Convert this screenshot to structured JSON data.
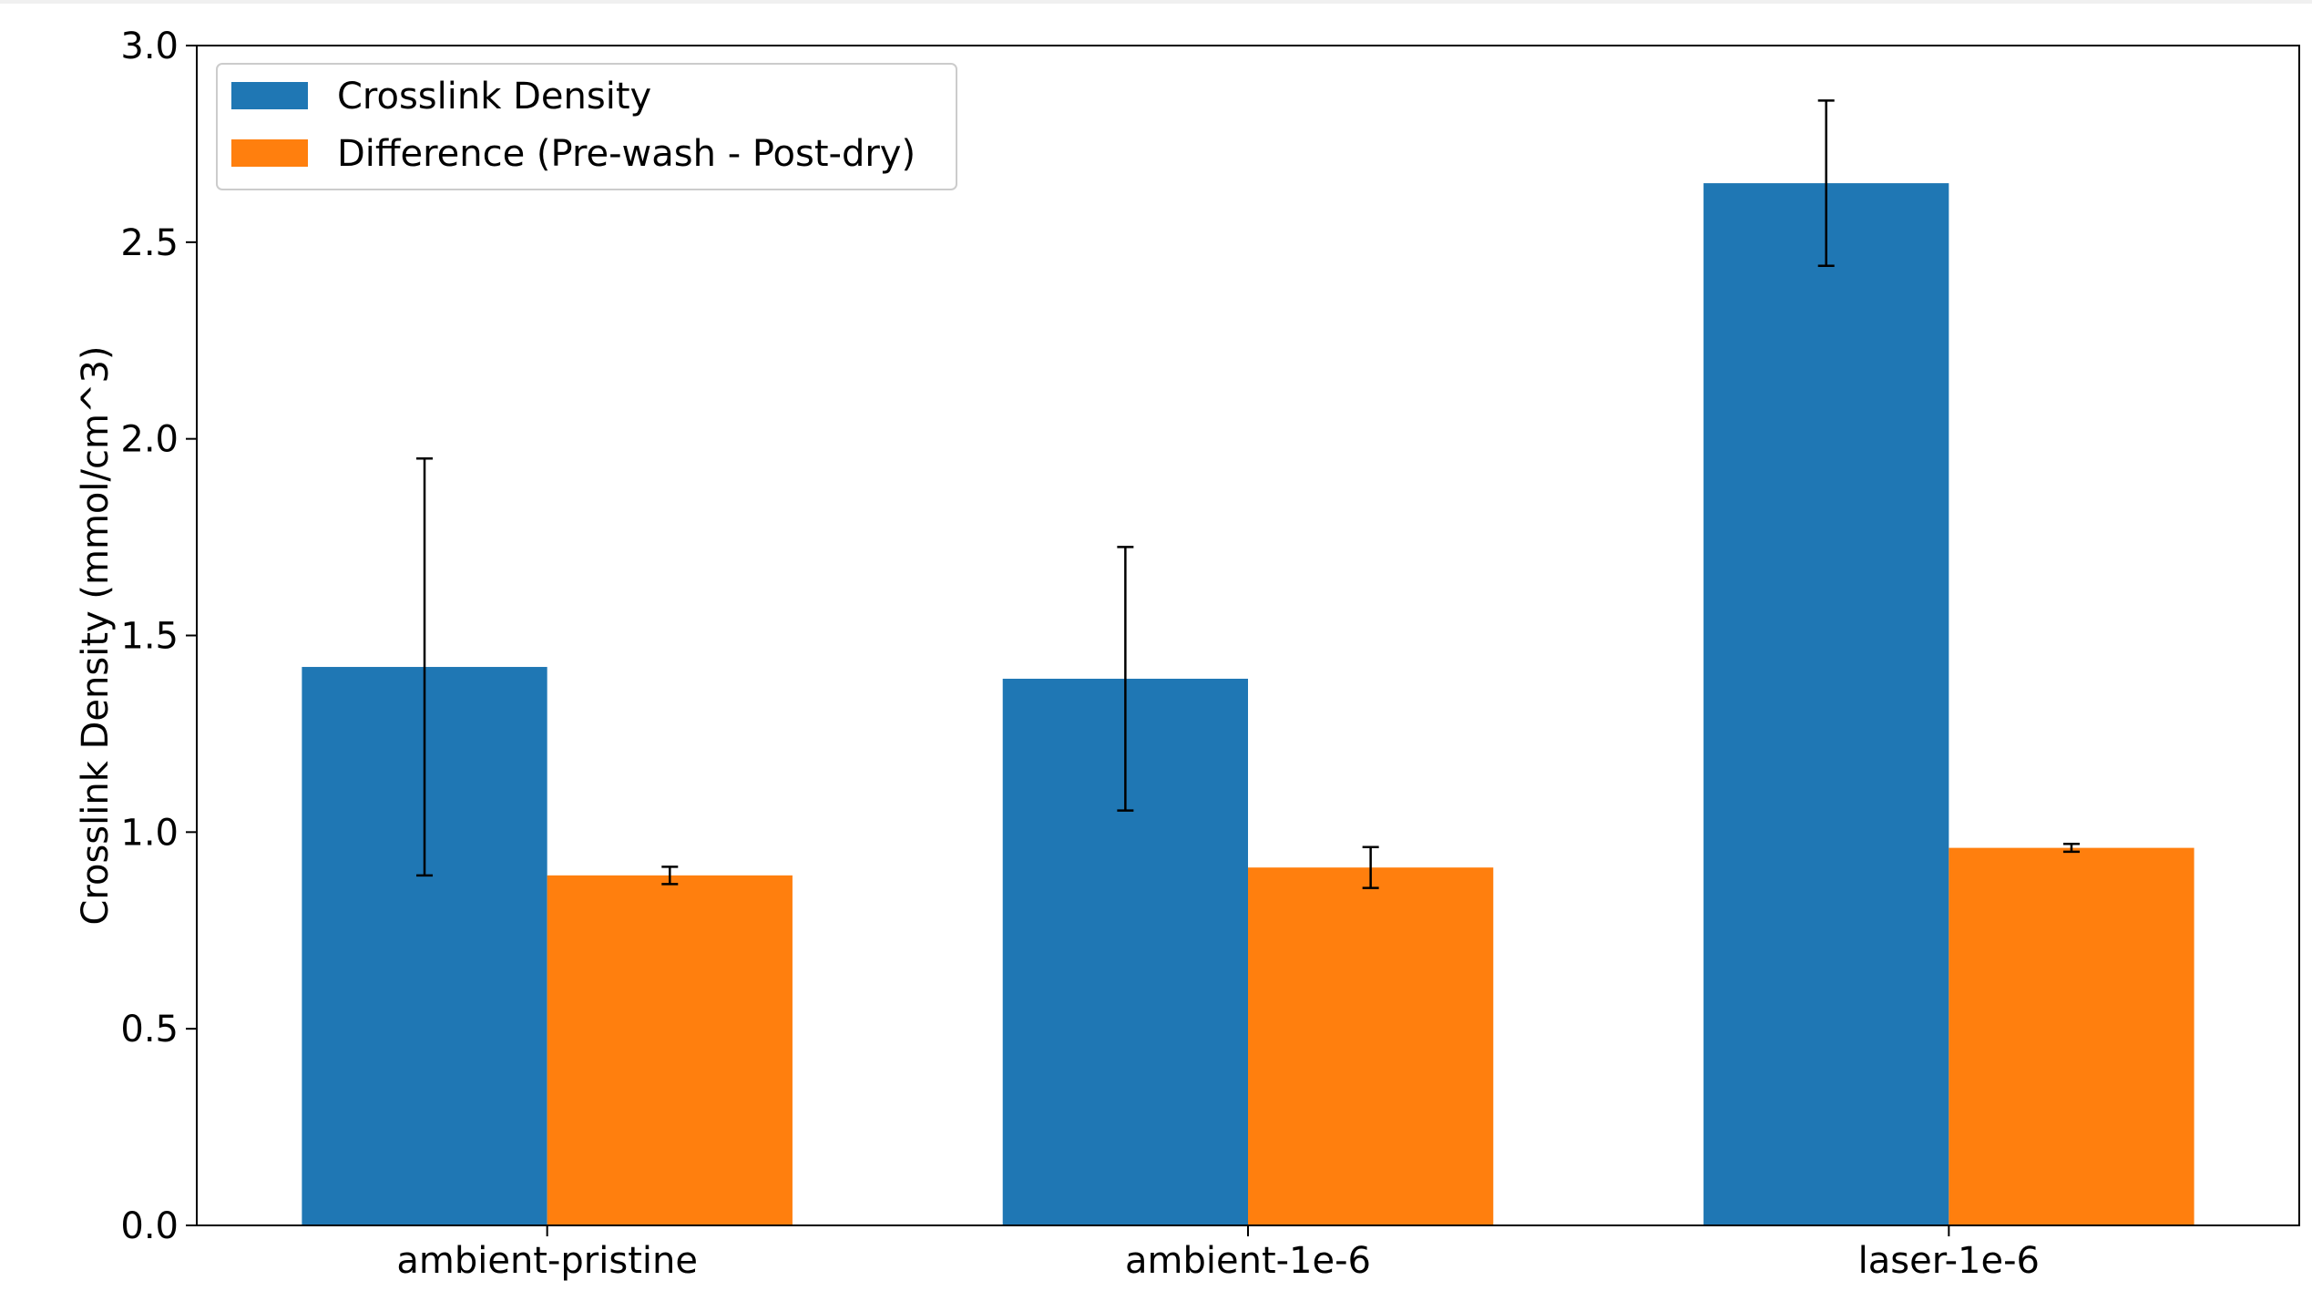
{
  "chart_data": {
    "type": "bar",
    "categories": [
      "ambient-pristine",
      "ambient-1e-6",
      "laser-1e-6"
    ],
    "series": [
      {
        "name": "Crosslink Density",
        "color": "#1f77b4",
        "values": [
          1.42,
          1.39,
          2.65
        ],
        "errors": [
          0.53,
          0.335,
          0.21
        ]
      },
      {
        "name": "Difference (Pre-wash - Post-dry)",
        "color": "#ff7f0e",
        "values": [
          0.89,
          0.91,
          0.96
        ],
        "errors": [
          0.022,
          0.052,
          0.01
        ]
      }
    ],
    "title": "",
    "xlabel": "",
    "ylabel": "Crosslink Density (mmol/cm^3)",
    "ylim": [
      0,
      3.0
    ],
    "yticks": [
      "0.0",
      "0.5",
      "1.0",
      "1.5",
      "2.0",
      "2.5",
      "3.0"
    ],
    "grid": false,
    "legend_position": "upper-left"
  }
}
